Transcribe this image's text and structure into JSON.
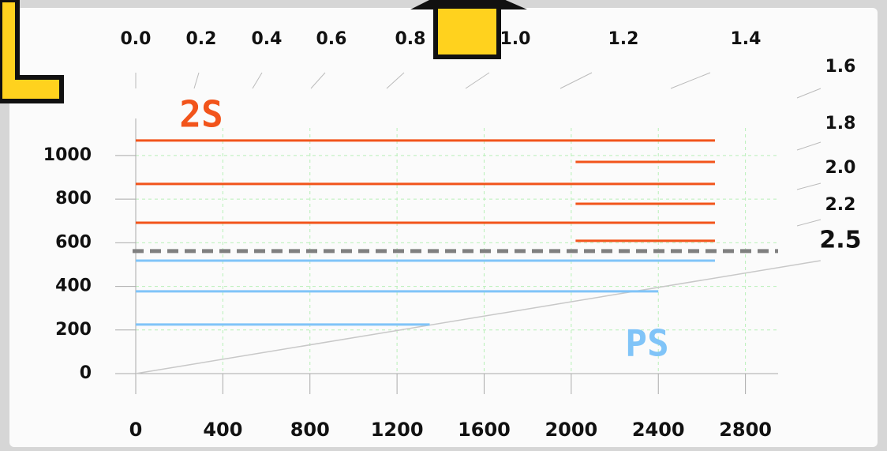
{
  "chart_data": {
    "type": "segments",
    "xlim": [
      0,
      2950
    ],
    "ylim": [
      0,
      1170
    ],
    "xticks": [
      0,
      400,
      800,
      1200,
      1600,
      2000,
      2400,
      2800
    ],
    "yticks": [
      0,
      200,
      400,
      600,
      800,
      1000
    ],
    "grid": true,
    "top_ticks": [
      {
        "value": 0,
        "label": "0.0"
      },
      {
        "value": 0.2,
        "label": "0.2"
      },
      {
        "value": 0.4,
        "label": "0.4"
      },
      {
        "value": 0.6,
        "label": "0.6"
      },
      {
        "value": 0.8,
        "label": "0.8"
      },
      {
        "value": 1,
        "label": "1.0"
      },
      {
        "value": 1.2,
        "label": "1.2"
      },
      1.4,
      1.6,
      1.8,
      {
        "value": 2,
        "label": "2.0"
      },
      2.2,
      2.5
    ],
    "threshold": 562,
    "reference_line": {
      "x": [
        0,
        3145
      ],
      "y": [
        0,
        518
      ]
    },
    "series": [
      {
        "name": "2S",
        "color": "#f2541b",
        "lines": [
          {
            "y": 1069,
            "x": [
              0,
              2660
            ]
          },
          {
            "y": 971,
            "x": [
              2020,
              2660
            ]
          },
          {
            "y": 870,
            "x": [
              0,
              2660
            ]
          },
          {
            "y": 779,
            "x": [
              2020,
              2660
            ]
          },
          {
            "y": 692,
            "x": [
              0,
              2660
            ]
          },
          {
            "y": 609,
            "x": [
              2020,
              2660
            ]
          }
        ]
      },
      {
        "name": "PS",
        "color": "#80c4f8",
        "lines": [
          {
            "y": 518,
            "x": [
              0,
              2660
            ]
          },
          {
            "y": 377,
            "x": [
              0,
              2400
            ]
          },
          {
            "y": 225,
            "x": [
              0,
              1350
            ]
          }
        ]
      }
    ]
  }
}
